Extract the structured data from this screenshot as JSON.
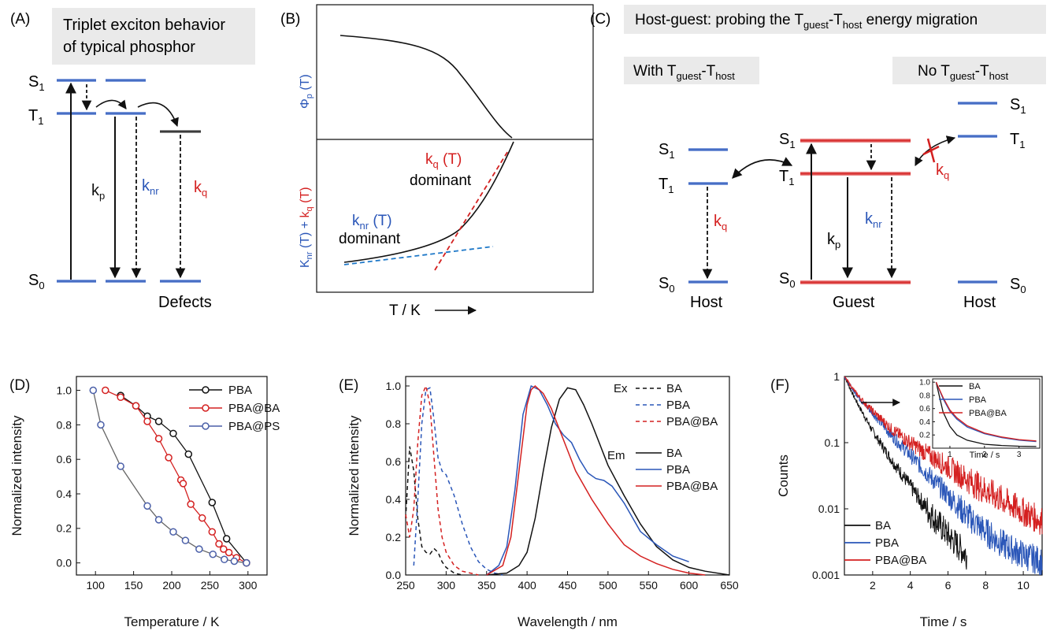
{
  "panel_a": {
    "letter": "(A)",
    "title_line1": "Triplet exciton behavior",
    "title_line2": "of typical phosphor",
    "s1": "S",
    "s1_sub": "1",
    "t1": "T",
    "t1_sub": "1",
    "s0": "S",
    "s0_sub": "0",
    "kp": "k",
    "kp_sub": "p",
    "knr": "k",
    "knr_sub": "nr",
    "kq": "k",
    "kq_sub": "q",
    "defects": "Defects"
  },
  "panel_b": {
    "letter": "(B)",
    "phi_main": "Φ",
    "phi_sub": "p",
    "phi_t": " (T)",
    "k_nr_main": "K",
    "k_nr_sub": "nr",
    "k_nr_t": " (T) + ",
    "k_q_main": "k",
    "k_q_sub": "q",
    "k_q_t": " (T)",
    "kq_label_main": "k",
    "kq_label_sub": "q",
    "kq_label_t": " (T)",
    "kq_dominant": "dominant",
    "knr_label_main": "k",
    "knr_label_sub": "nr",
    "knr_label_t": " (T)",
    "knr_dominant": "dominant",
    "xlabel": "T / K"
  },
  "panel_c": {
    "letter": "(C)",
    "title_pre": "Host-guest: probing the T",
    "title_sub1": "guest",
    "title_mid": "-T",
    "title_sub2": "host",
    "title_post": " energy migration",
    "with_pre": "With T",
    "with_sub1": "guest",
    "with_mid": "-T",
    "with_sub2": "host",
    "no_pre": "No T",
    "no_sub1": "guest",
    "no_mid": "-T",
    "no_sub2": "host",
    "s1": "S",
    "s1_sub": "1",
    "t1": "T",
    "t1_sub": "1",
    "s0": "S",
    "s0_sub": "0",
    "kq": "k",
    "kq_sub": "q",
    "kp": "k",
    "kp_sub": "p",
    "knr": "k",
    "knr_sub": "nr",
    "host": "Host",
    "guest": "Guest"
  },
  "colors": {
    "blue": "#2a56b8",
    "red": "#d42020",
    "dashblue": "#1e78c8",
    "black": "#111111",
    "gray_box": "#eaeaea",
    "pba_at_ps": "#4a5fa8"
  },
  "chart_data": [
    {
      "panel": "(D)",
      "type": "line",
      "xlabel": "Temperature / K",
      "ylabel": "Normalized intensity",
      "xlim": [
        75,
        325
      ],
      "ylim": [
        -0.07,
        1.08
      ],
      "xticks": [
        100,
        150,
        200,
        250,
        300
      ],
      "yticks": [
        0.0,
        0.2,
        0.4,
        0.6,
        0.8,
        1.0
      ],
      "ytick_labels": [
        "0.0",
        "0.2",
        "0.4",
        "0.6",
        "0.8",
        "1.0"
      ],
      "legend": "top-right",
      "series": [
        {
          "name": "PBA",
          "color": "#111111",
          "x": [
            133,
            153,
            168,
            183,
            202,
            222,
            253,
            272,
            298
          ],
          "y": [
            0.97,
            0.91,
            0.85,
            0.82,
            0.75,
            0.63,
            0.35,
            0.14,
            0.0
          ]
        },
        {
          "name": "PBA@BA",
          "color": "#d42020",
          "x": [
            113,
            133,
            153,
            168,
            183,
            196,
            212,
            215,
            225,
            240,
            253,
            262,
            268,
            275,
            285,
            298
          ],
          "y": [
            1.0,
            0.96,
            0.91,
            0.82,
            0.72,
            0.61,
            0.48,
            0.46,
            0.34,
            0.26,
            0.18,
            0.11,
            0.08,
            0.06,
            0.03,
            0.0
          ]
        },
        {
          "name": "PBA@PS",
          "color": "#4a5fa8",
          "x": [
            97,
            107,
            133,
            168,
            183,
            202,
            218,
            236,
            254,
            269,
            282,
            298
          ],
          "y": [
            1.0,
            0.8,
            0.56,
            0.33,
            0.25,
            0.18,
            0.13,
            0.08,
            0.05,
            0.02,
            0.01,
            0.0
          ]
        }
      ]
    },
    {
      "panel": "(E)",
      "type": "line",
      "xlabel": "Wavelength / nm",
      "ylabel": "Normalized intensity",
      "xlim": [
        250,
        650
      ],
      "ylim": [
        0,
        1.05
      ],
      "xticks": [
        250,
        300,
        350,
        400,
        450,
        500,
        550,
        600,
        650
      ],
      "yticks": [
        0.0,
        0.2,
        0.4,
        0.6,
        0.8,
        1.0
      ],
      "ytick_labels": [
        "0.0",
        "0.2",
        "0.4",
        "0.6",
        "0.8",
        "1.0"
      ],
      "legend": "top-right",
      "legend_group_ex": "Ex",
      "legend_group_em": "Em",
      "series": [
        {
          "name": "BA",
          "group": "Ex",
          "dashed": true,
          "color": "#111111",
          "x": [
            250,
            255,
            260,
            265,
            270,
            275,
            280,
            285,
            290,
            295,
            300,
            310,
            320
          ],
          "y": [
            0.3,
            0.68,
            0.55,
            0.3,
            0.15,
            0.12,
            0.11,
            0.14,
            0.12,
            0.07,
            0.04,
            0.01,
            0.0
          ]
        },
        {
          "name": "PBA",
          "group": "Ex",
          "dashed": true,
          "color": "#2a56b8",
          "x": [
            260,
            265,
            270,
            275,
            280,
            285,
            290,
            295,
            300,
            310,
            320,
            330,
            340,
            350,
            360,
            370
          ],
          "y": [
            0.05,
            0.4,
            0.8,
            0.98,
            0.99,
            0.82,
            0.62,
            0.55,
            0.53,
            0.42,
            0.27,
            0.15,
            0.07,
            0.03,
            0.01,
            0.0
          ]
        },
        {
          "name": "PBA@BA",
          "group": "Ex",
          "dashed": true,
          "color": "#d42020",
          "x": [
            250,
            255,
            260,
            265,
            270,
            275,
            280,
            285,
            290,
            295,
            300,
            310,
            320,
            330,
            340
          ],
          "y": [
            0.32,
            0.2,
            0.35,
            0.7,
            0.95,
            1.0,
            0.9,
            0.62,
            0.35,
            0.2,
            0.12,
            0.05,
            0.02,
            0.01,
            0.0
          ]
        },
        {
          "name": "BA",
          "group": "Em",
          "dashed": false,
          "color": "#111111",
          "x": [
            350,
            375,
            390,
            400,
            410,
            420,
            430,
            440,
            450,
            460,
            470,
            480,
            500,
            520,
            540,
            560,
            580,
            600,
            620,
            650
          ],
          "y": [
            0.0,
            0.01,
            0.05,
            0.12,
            0.3,
            0.55,
            0.78,
            0.93,
            0.99,
            0.98,
            0.9,
            0.8,
            0.58,
            0.42,
            0.27,
            0.15,
            0.08,
            0.04,
            0.02,
            0.0
          ]
        },
        {
          "name": "PBA",
          "group": "Em",
          "dashed": false,
          "color": "#2a56b8",
          "x": [
            350,
            365,
            375,
            385,
            395,
            405,
            415,
            425,
            435,
            445,
            455,
            465,
            475,
            485,
            495,
            505,
            520,
            540,
            560,
            580,
            600
          ],
          "y": [
            0.0,
            0.05,
            0.15,
            0.45,
            0.85,
            1.0,
            0.98,
            0.9,
            0.8,
            0.74,
            0.7,
            0.61,
            0.54,
            0.51,
            0.5,
            0.47,
            0.38,
            0.23,
            0.16,
            0.1,
            0.07
          ]
        },
        {
          "name": "PBA@BA",
          "group": "Em",
          "dashed": false,
          "color": "#d42020",
          "x": [
            350,
            370,
            380,
            390,
            400,
            405,
            410,
            420,
            430,
            440,
            450,
            460,
            480,
            500,
            520,
            540,
            560,
            580,
            600,
            620
          ],
          "y": [
            0.0,
            0.05,
            0.2,
            0.55,
            0.9,
            0.98,
            1.0,
            0.96,
            0.88,
            0.77,
            0.66,
            0.55,
            0.4,
            0.27,
            0.16,
            0.1,
            0.06,
            0.03,
            0.01,
            0.0
          ]
        }
      ]
    },
    {
      "panel": "(F)",
      "type": "line",
      "xlabel": "Time / s",
      "ylabel": "Counts",
      "yscale": "log",
      "xlim": [
        0.5,
        11
      ],
      "ylim": [
        0.001,
        1
      ],
      "xticks": [
        2,
        4,
        6,
        8,
        10
      ],
      "yticks": [
        0.001,
        0.01,
        0.1,
        1
      ],
      "ytick_labels": [
        "0.001",
        "0.01",
        "0.1",
        "1"
      ],
      "legend": "bottom-left",
      "series": [
        {
          "name": "BA",
          "color": "#111111",
          "x": [
            0.5,
            1,
            1.5,
            2,
            2.5,
            3,
            3.5,
            4,
            4.5,
            5,
            5.5,
            6,
            6.5,
            7
          ],
          "y": [
            1.0,
            0.5,
            0.27,
            0.15,
            0.09,
            0.055,
            0.035,
            0.022,
            0.014,
            0.009,
            0.006,
            0.004,
            0.0028,
            0.002
          ]
        },
        {
          "name": "PBA",
          "color": "#2a56b8",
          "x": [
            0.5,
            1,
            1.5,
            2,
            3,
            4,
            5,
            6,
            7,
            8,
            9,
            10,
            11
          ],
          "y": [
            1.0,
            0.6,
            0.4,
            0.28,
            0.13,
            0.065,
            0.032,
            0.016,
            0.008,
            0.0045,
            0.0028,
            0.002,
            0.0016
          ]
        },
        {
          "name": "PBA@BA",
          "color": "#d42020",
          "x": [
            0.5,
            1,
            1.5,
            2,
            3,
            4,
            5,
            6,
            7,
            8,
            9,
            10,
            11
          ],
          "y": [
            1.0,
            0.62,
            0.42,
            0.3,
            0.16,
            0.1,
            0.065,
            0.043,
            0.028,
            0.019,
            0.013,
            0.009,
            0.0065
          ]
        }
      ],
      "inset": {
        "xlabel": "Time / s",
        "xlim": [
          0.5,
          3.6
        ],
        "ylim": [
          0.0,
          1.05
        ],
        "xticks": [
          1,
          2,
          3
        ],
        "yticks": [
          0.2,
          0.4,
          0.6,
          0.8,
          1.0
        ],
        "ytick_labels": [
          "0.2",
          "0.4",
          "0.6",
          "0.8",
          "1.0"
        ],
        "legend": "top-right",
        "series": [
          {
            "name": "BA",
            "color": "#111111",
            "x": [
              0.6,
              0.8,
              1.0,
              1.2,
              1.5,
              2.0,
              2.5,
              3.0,
              3.5
            ],
            "y": [
              1.0,
              0.55,
              0.33,
              0.2,
              0.12,
              0.06,
              0.04,
              0.03,
              0.025
            ]
          },
          {
            "name": "PBA",
            "color": "#2a56b8",
            "x": [
              0.6,
              0.8,
              1.0,
              1.2,
              1.5,
              2.0,
              2.5,
              3.0,
              3.5
            ],
            "y": [
              1.0,
              0.75,
              0.56,
              0.44,
              0.32,
              0.22,
              0.16,
              0.12,
              0.1
            ]
          },
          {
            "name": "PBA@BA",
            "color": "#d42020",
            "x": [
              0.6,
              0.8,
              1.0,
              1.2,
              1.5,
              2.0,
              2.5,
              3.0,
              3.5
            ],
            "y": [
              1.0,
              0.77,
              0.58,
              0.46,
              0.34,
              0.23,
              0.17,
              0.13,
              0.11
            ]
          }
        ]
      }
    }
  ]
}
